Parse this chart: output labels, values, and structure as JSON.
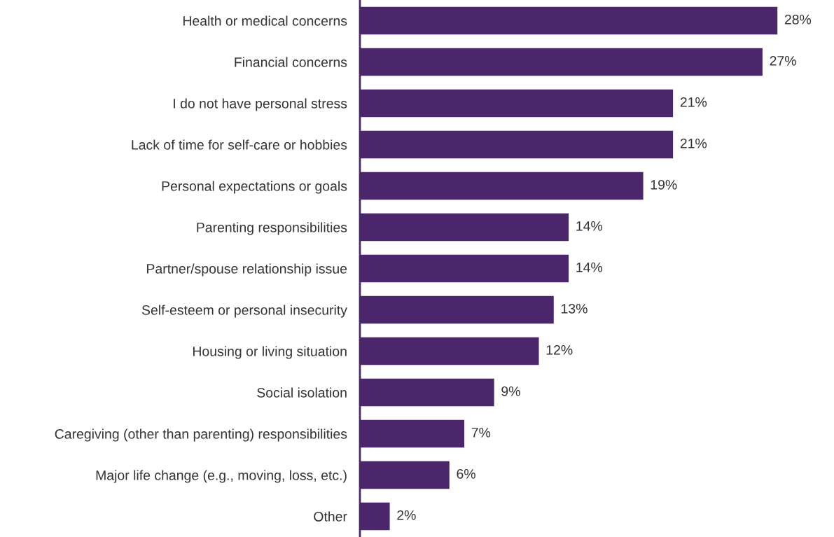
{
  "chart_data": {
    "type": "bar",
    "orientation": "horizontal",
    "categories": [
      "Health or medical concerns",
      "Financial concerns",
      "I do not have personal stress",
      "Lack of time for self-care or hobbies",
      "Personal expectations or goals",
      "Parenting responsibilities",
      "Partner/spouse relationship issue",
      "Self-esteem or personal insecurity",
      "Housing or living situation",
      "Social isolation",
      "Caregiving (other than parenting) responsibilities",
      "Major life change (e.g., moving, loss, etc.)",
      "Other"
    ],
    "values": [
      28,
      27,
      21,
      21,
      19,
      14,
      14,
      13,
      12,
      9,
      7,
      6,
      2
    ],
    "value_labels": [
      "28%",
      "27%",
      "21%",
      "21%",
      "19%",
      "14%",
      "14%",
      "13%",
      "12%",
      "9%",
      "7%",
      "6%",
      "2%"
    ],
    "color": "#4b266a",
    "tick_labels": "y",
    "grid": false,
    "legend": false
  }
}
